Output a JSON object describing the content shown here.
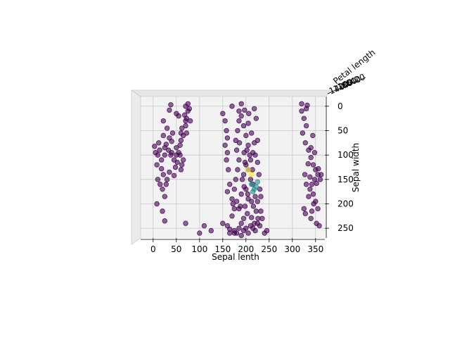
{
  "chart_data": {
    "type": "scatter",
    "projection": "3d",
    "view": "top-down (z axis pointing toward viewer)",
    "xlabel": "Sepal lenth",
    "ylabel": "Sepal width",
    "zlabel": "Petal length",
    "xlim": [
      -27,
      370
    ],
    "ylim": [
      270,
      -20
    ],
    "xticks": [
      "0",
      "50",
      "100",
      "150",
      "200",
      "250",
      "300",
      "350"
    ],
    "yticks": [
      "0",
      "50",
      "100",
      "150",
      "200",
      "250"
    ],
    "grid": true,
    "pane_color": "#f2f2f2",
    "colormap": "viridis",
    "primary_color": "#440154",
    "secondary_colors": [
      "#21918c",
      "#fde725"
    ],
    "marker_alpha": 0.6,
    "series": [
      {
        "color_class": "dark-purple",
        "points": [
          [
            5,
            95
          ],
          [
            8,
            120
          ],
          [
            12,
            75
          ],
          [
            18,
            110
          ],
          [
            22,
            60
          ],
          [
            25,
            85
          ],
          [
            30,
            45
          ],
          [
            35,
            65
          ],
          [
            38,
            100
          ],
          [
            42,
            55
          ],
          [
            10,
            150
          ],
          [
            15,
            160
          ],
          [
            20,
            170
          ],
          [
            25,
            185
          ],
          [
            8,
            200
          ],
          [
            3,
            82
          ],
          [
            14,
            90
          ],
          [
            28,
            78
          ],
          [
            33,
            90
          ],
          [
            40,
            72
          ],
          [
            45,
            110
          ],
          [
            48,
            125
          ],
          [
            55,
            95
          ],
          [
            58,
            80
          ],
          [
            60,
            130
          ],
          [
            62,
            120
          ],
          [
            50,
            100
          ],
          [
            45,
            142
          ],
          [
            35,
            135
          ],
          [
            52,
            115
          ],
          [
            65,
            60
          ],
          [
            70,
            40
          ],
          [
            72,
            25
          ],
          [
            75,
            10
          ],
          [
            78,
            5
          ],
          [
            70,
            30
          ],
          [
            62,
            45
          ],
          [
            60,
            55
          ],
          [
            55,
            20
          ],
          [
            50,
            15
          ],
          [
            58,
            100
          ],
          [
            65,
            110
          ],
          [
            50,
            85
          ],
          [
            40,
            95
          ],
          [
            25,
            100
          ],
          [
            10,
            100
          ],
          [
            18,
            128
          ],
          [
            22,
            140
          ],
          [
            28,
            160
          ],
          [
            30,
            150
          ],
          [
            20,
            215
          ],
          [
            25,
            235
          ],
          [
            70,
            240
          ],
          [
            80,
            30
          ],
          [
            70,
            0
          ],
          [
            75,
            -5
          ],
          [
            68,
            18
          ],
          [
            72,
            55
          ],
          [
            60,
            70
          ],
          [
            22,
            30
          ],
          [
            35,
            8
          ],
          [
            38,
            -3
          ],
          [
            100,
            260
          ],
          [
            110,
            245
          ],
          [
            125,
            255
          ],
          [
            150,
            240
          ],
          [
            160,
            245
          ],
          [
            165,
            260
          ],
          [
            170,
            225
          ],
          [
            175,
            210
          ],
          [
            150,
            15
          ],
          [
            155,
            30
          ],
          [
            158,
            50
          ],
          [
            160,
            65
          ],
          [
            155,
            80
          ],
          [
            160,
            95
          ],
          [
            158,
            110
          ],
          [
            162,
            130
          ],
          [
            165,
            160
          ],
          [
            160,
            175
          ],
          [
            170,
            190
          ],
          [
            172,
            200
          ],
          [
            175,
            255
          ],
          [
            180,
            260
          ],
          [
            185,
            250
          ],
          [
            190,
            240
          ],
          [
            195,
            255
          ],
          [
            200,
            250
          ],
          [
            205,
            260
          ],
          [
            210,
            245
          ],
          [
            215,
            250
          ],
          [
            220,
            255
          ],
          [
            225,
            240
          ],
          [
            230,
            245
          ],
          [
            240,
            260
          ],
          [
            245,
            255
          ],
          [
            235,
            230
          ],
          [
            232,
            215
          ],
          [
            225,
            195
          ],
          [
            220,
            185
          ],
          [
            200,
            120
          ],
          [
            205,
            130
          ],
          [
            195,
            140
          ],
          [
            210,
            150
          ],
          [
            215,
            160
          ],
          [
            200,
            170
          ],
          [
            190,
            180
          ],
          [
            210,
            110
          ],
          [
            215,
            95
          ],
          [
            205,
            80
          ],
          [
            200,
            60
          ],
          [
            195,
            40
          ],
          [
            190,
            20
          ],
          [
            185,
            10
          ],
          [
            190,
            -5
          ],
          [
            205,
            35
          ],
          [
            212,
            55
          ],
          [
            218,
            75
          ],
          [
            220,
            100
          ],
          [
            225,
            115
          ],
          [
            228,
            140
          ],
          [
            230,
            170
          ],
          [
            232,
            185
          ],
          [
            222,
            25
          ],
          [
            218,
            5
          ],
          [
            225,
            70
          ],
          [
            205,
            190
          ],
          [
            198,
            205
          ],
          [
            203,
            220
          ],
          [
            195,
            230
          ],
          [
            185,
            210
          ],
          [
            180,
            195
          ],
          [
            175,
            170
          ],
          [
            178,
            150
          ],
          [
            182,
            130
          ],
          [
            185,
            110
          ],
          [
            180,
            90
          ],
          [
            178,
            70
          ],
          [
            182,
            50
          ],
          [
            185,
            30
          ],
          [
            202,
            90
          ],
          [
            208,
            100
          ],
          [
            198,
            115
          ],
          [
            192,
            150
          ],
          [
            196,
            165
          ],
          [
            204,
            180
          ],
          [
            212,
            195
          ],
          [
            216,
            205
          ],
          [
            222,
            215
          ],
          [
            226,
            230
          ],
          [
            320,
            10
          ],
          [
            325,
            25
          ],
          [
            330,
            40
          ],
          [
            322,
            55
          ],
          [
            328,
            75
          ],
          [
            335,
            90
          ],
          [
            340,
            105
          ],
          [
            345,
            120
          ],
          [
            350,
            130
          ],
          [
            355,
            140
          ],
          [
            348,
            150
          ],
          [
            342,
            160
          ],
          [
            338,
            170
          ],
          [
            345,
            180
          ],
          [
            350,
            195
          ],
          [
            355,
            210
          ],
          [
            340,
            230
          ],
          [
            352,
            240
          ],
          [
            358,
            245
          ],
          [
            330,
            5
          ],
          [
            320,
            -5
          ],
          [
            332,
            -2
          ],
          [
            325,
            210
          ],
          [
            328,
            220
          ],
          [
            338,
            145
          ],
          [
            352,
            158
          ],
          [
            346,
            200
          ],
          [
            334,
            118
          ],
          [
            340,
            85
          ],
          [
            344,
            60
          ],
          [
            170,
            0
          ],
          [
            175,
            260
          ],
          [
            360,
            150
          ],
          [
            362,
            140
          ],
          [
            356,
            128
          ],
          [
            348,
            95
          ],
          [
            327,
            140
          ],
          [
            330,
            160
          ],
          [
            335,
            185
          ],
          [
            342,
            215
          ],
          [
            218,
            240
          ],
          [
            190,
            265
          ],
          [
            165,
            252
          ],
          [
            188,
            205
          ],
          [
            212,
            228
          ],
          [
            196,
            95
          ],
          [
            214,
            130
          ],
          [
            186,
            75
          ],
          [
            206,
            15
          ],
          [
            197,
            8
          ]
        ]
      },
      {
        "color_class": "teal",
        "points": [
          [
            218,
            170
          ],
          [
            222,
            165
          ],
          [
            215,
            175
          ],
          [
            225,
            155
          ],
          [
            212,
            160
          ]
        ]
      },
      {
        "color_class": "yellow",
        "points": [
          [
            205,
            130
          ],
          [
            212,
            140
          ]
        ]
      }
    ]
  }
}
